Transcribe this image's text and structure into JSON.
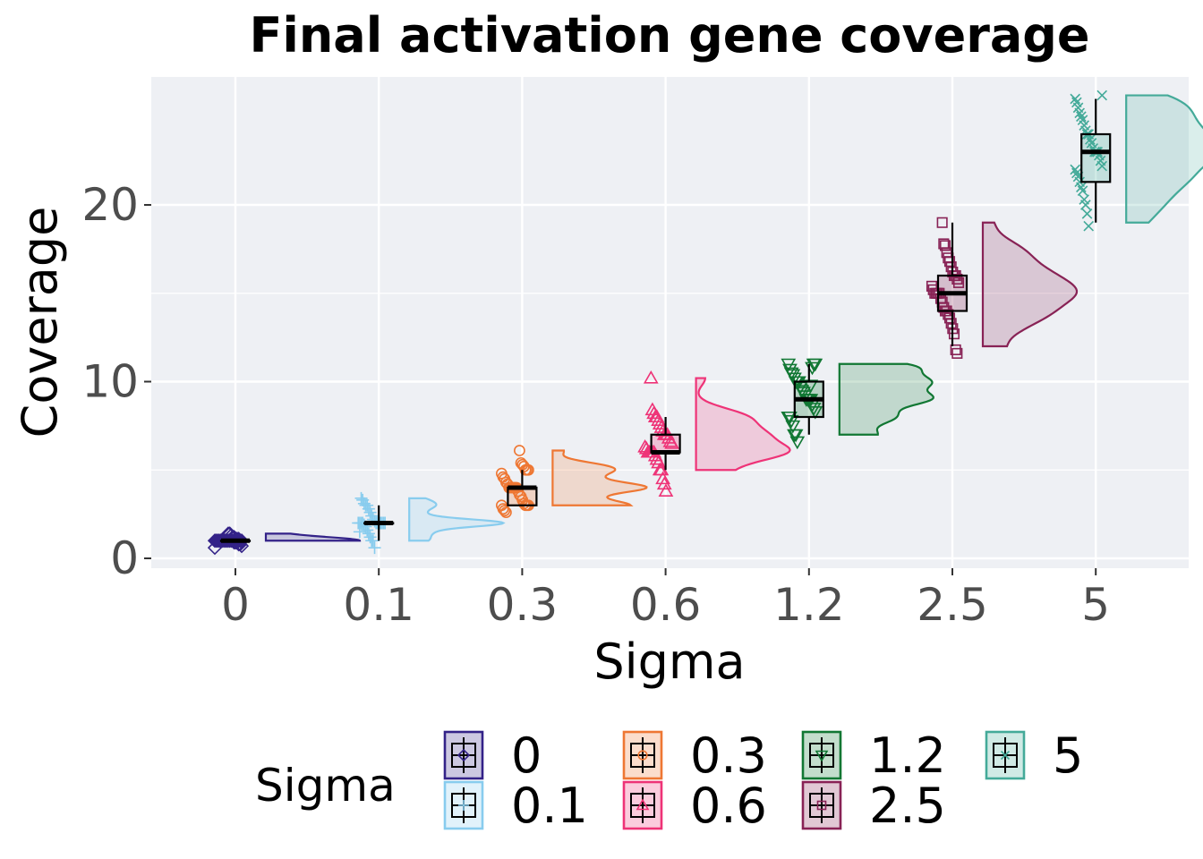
{
  "chart_data": {
    "type": "raincloud",
    "title": "Final activation gene coverage",
    "xlabel": "Sigma",
    "ylabel": "Coverage",
    "ylim": [
      -0.6,
      27.2
    ],
    "y_ticks": [
      0,
      10,
      20
    ],
    "grid": true,
    "legend": {
      "title": "Sigma",
      "position": "bottom"
    },
    "categories": [
      "0",
      "0.1",
      "0.3",
      "0.6",
      "1.2",
      "2.5",
      "5"
    ],
    "series": [
      {
        "name": "0",
        "color": "#332288",
        "marker": "diamond",
        "min": 1,
        "q1": 1,
        "median": 1,
        "q3": 1,
        "max": 1,
        "points": [
          0.6,
          0.7,
          0.8,
          0.8,
          0.9,
          0.9,
          0.9,
          1,
          1,
          1,
          1,
          1,
          1,
          1,
          1,
          1,
          1,
          1,
          1,
          1,
          1,
          1,
          1.1,
          1.1,
          1.1,
          1.2,
          1.2,
          1.3,
          1.4,
          1.4
        ]
      },
      {
        "name": "0.1",
        "color": "#88CCEE",
        "marker": "plus",
        "min": 1,
        "q1": 2,
        "median": 2,
        "q3": 2,
        "max": 3,
        "points": [
          0.6,
          1,
          1,
          1.2,
          1.4,
          1.6,
          1.8,
          1.9,
          2,
          2,
          2,
          2,
          2,
          2,
          2,
          2,
          2,
          2,
          2,
          2.1,
          2.2,
          2.4,
          2.6,
          2.8,
          3,
          3,
          3.1,
          3.3,
          3.4,
          1.5
        ]
      },
      {
        "name": "0.3",
        "color": "#EE7733",
        "marker": "circle",
        "min": 3,
        "q1": 3,
        "median": 4,
        "q3": 4,
        "max": 5,
        "points": [
          2.6,
          2.7,
          2.8,
          3,
          3,
          3,
          3,
          3.1,
          3.3,
          3.5,
          3.6,
          3.8,
          4,
          4,
          4,
          4,
          4,
          4,
          4.2,
          4.3,
          4.5,
          4.6,
          4.8,
          5,
          5,
          5,
          5.2,
          5.3,
          5.4,
          6.1
        ]
      },
      {
        "name": "0.6",
        "color": "#EE3377",
        "marker": "triangle",
        "min": 5,
        "q1": 6,
        "median": 6,
        "q3": 7,
        "max": 8,
        "points": [
          3.8,
          4.2,
          4.5,
          5,
          5,
          5.4,
          5.6,
          5.8,
          6,
          6,
          6,
          6,
          6,
          6.2,
          6.3,
          6.5,
          6.6,
          6.8,
          7,
          7,
          7,
          7.2,
          7.4,
          7.6,
          7.8,
          8,
          8,
          8.2,
          8.4,
          10.2
        ]
      },
      {
        "name": "1.2",
        "color": "#117733",
        "marker": "triangle-down",
        "min": 7,
        "q1": 8,
        "median": 9,
        "q3": 10,
        "max": 11,
        "points": [
          6.6,
          7,
          7,
          7.5,
          7.8,
          8,
          8,
          8.3,
          8.5,
          8.7,
          9,
          9,
          9,
          9,
          9.2,
          9.4,
          9.5,
          9.7,
          10,
          10,
          10,
          10.2,
          10.4,
          10.5,
          10.7,
          11,
          11,
          11,
          10.8,
          9.8
        ]
      },
      {
        "name": "2.5",
        "color": "#882255",
        "marker": "square",
        "min": 12,
        "q1": 14,
        "median": 15,
        "q3": 16,
        "max": 19,
        "points": [
          11.6,
          11.8,
          12.7,
          13,
          13.3,
          13.6,
          13.8,
          14,
          14,
          14.2,
          14.5,
          14.7,
          15,
          15,
          15,
          15,
          15.2,
          15.4,
          15.6,
          15.8,
          16,
          16,
          16.2,
          16.5,
          16.8,
          17,
          17.3,
          17.7,
          17.8,
          19
        ]
      },
      {
        "name": "5",
        "color": "#44AA99",
        "marker": "x",
        "min": 19,
        "q1": 21.3,
        "median": 23,
        "q3": 24,
        "max": 26,
        "points": [
          18.8,
          19.5,
          20,
          20.3,
          20.8,
          21,
          21.3,
          21.6,
          21.8,
          22,
          22.2,
          22.5,
          22.8,
          23,
          23,
          23,
          23.2,
          23.5,
          23.7,
          24,
          24,
          24.2,
          24.5,
          24.8,
          25,
          25.2,
          25.5,
          25.8,
          26,
          26.2
        ]
      }
    ]
  }
}
